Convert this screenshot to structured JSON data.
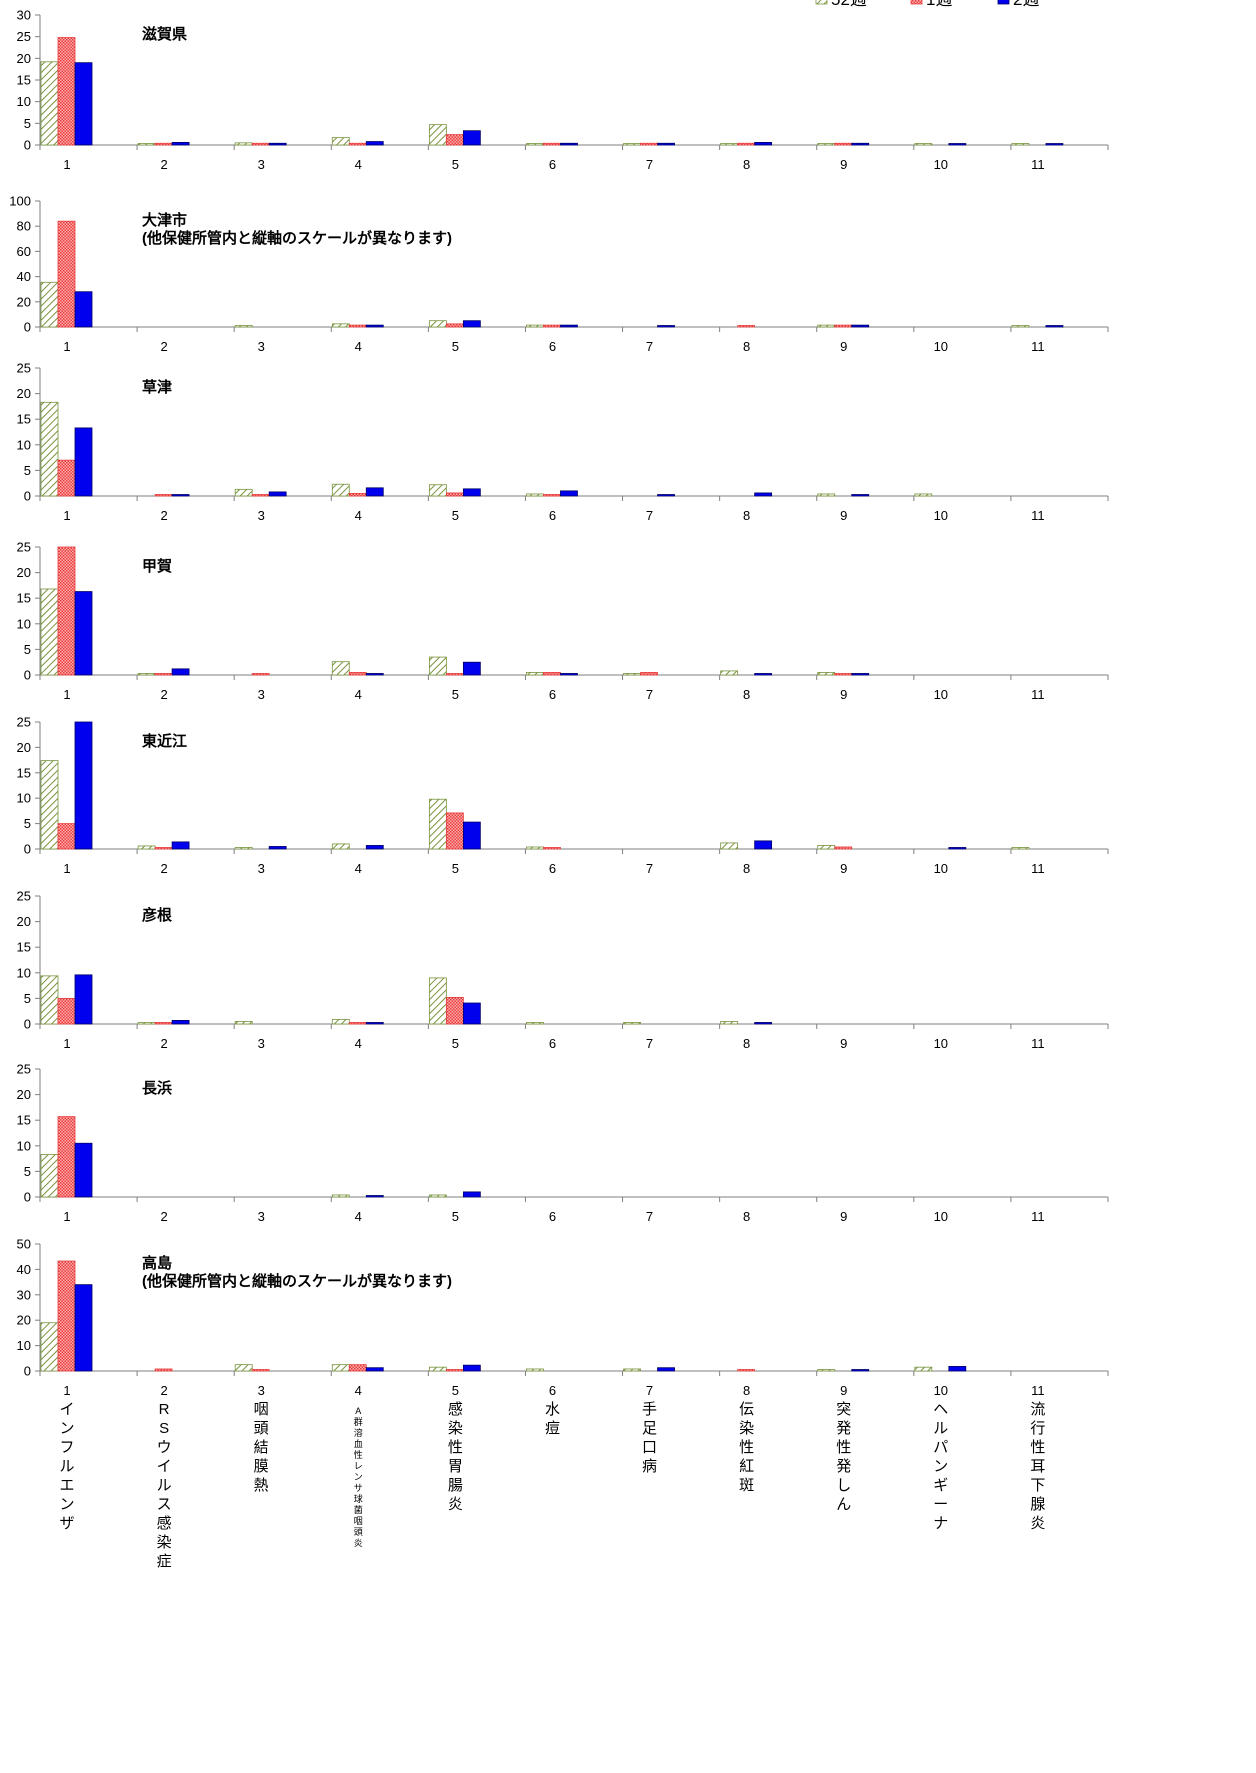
{
  "chart_data": {
    "type": "bar",
    "categories": [
      "1",
      "2",
      "3",
      "4",
      "5",
      "6",
      "7",
      "8",
      "9",
      "10",
      "11"
    ],
    "category_names": [
      "インフルエンザ",
      "RSウイルス感染症",
      "咽頭結膜熱",
      "A群溶血性レンサ球菌咽頭炎",
      "感染性胃腸炎",
      "水痘",
      "手足口病",
      "伝染性紅斑",
      "突発性発しん",
      "ヘルパンギーナ",
      "流行性耳下腺炎"
    ],
    "series_names": [
      "52週",
      "1週",
      "2週"
    ],
    "colors": {
      "s0": "#77933c",
      "s1": "#e83a3a",
      "s2": "#0000ee"
    },
    "legend_position": "top-right",
    "grid": false,
    "panels": [
      {
        "title": "滋賀県",
        "note": "",
        "ylim": [
          0,
          30
        ],
        "yticks": [
          0,
          5,
          10,
          15,
          20,
          25,
          30
        ],
        "series": [
          {
            "name": "52週",
            "values": [
              19.2,
              0.2,
              0.5,
              1.7,
              4.7,
              0.2,
              0.2,
              0.1,
              0.2,
              0.2,
              0.2
            ]
          },
          {
            "name": "1週",
            "values": [
              24.8,
              0.4,
              0.4,
              0.4,
              2.4,
              0.4,
              0.4,
              0.4,
              0.4,
              0,
              0
            ]
          },
          {
            "name": "2週",
            "values": [
              19.0,
              0.6,
              0.4,
              0.8,
              3.3,
              0.4,
              0.4,
              0.6,
              0.4,
              0.3,
              0.3
            ]
          }
        ]
      },
      {
        "title": "大津市",
        "note": "(他保健所管内と縦軸のスケールが異なります)",
        "ylim": [
          0,
          100
        ],
        "yticks": [
          0,
          20,
          40,
          60,
          80,
          100
        ],
        "series": [
          {
            "name": "52週",
            "values": [
              35.5,
              0,
              0.8,
              2.5,
              5.0,
              1.5,
              0,
              0,
              1.5,
              0,
              1.0
            ]
          },
          {
            "name": "1週",
            "values": [
              84.0,
              0,
              0,
              1.5,
              2.5,
              1.5,
              0,
              1.0,
              1.5,
              0,
              0
            ]
          },
          {
            "name": "2週",
            "values": [
              28.0,
              0,
              0,
              1.5,
              5.0,
              1.5,
              1.0,
              0,
              1.5,
              0,
              1.0
            ]
          }
        ]
      },
      {
        "title": "草津",
        "note": "",
        "ylim": [
          0,
          25
        ],
        "yticks": [
          0,
          5,
          10,
          15,
          20,
          25
        ],
        "series": [
          {
            "name": "52週",
            "values": [
              18.3,
              0,
              1.3,
              2.3,
              2.2,
              0.4,
              0,
              0,
              0.4,
              0.4,
              0
            ]
          },
          {
            "name": "1週",
            "values": [
              7.0,
              0.2,
              0.2,
              0.5,
              0.6,
              0.2,
              0,
              0,
              0,
              0,
              0
            ]
          },
          {
            "name": "2週",
            "values": [
              13.3,
              0.2,
              0.8,
              1.6,
              1.4,
              1.0,
              0.2,
              0.6,
              0.2,
              0,
              0
            ]
          }
        ]
      },
      {
        "title": "甲賀",
        "note": "",
        "ylim": [
          0,
          25
        ],
        "yticks": [
          0,
          5,
          10,
          15,
          20,
          25
        ],
        "series": [
          {
            "name": "52週",
            "values": [
              16.8,
              0.3,
              0,
              2.6,
              3.5,
              0.5,
              0.3,
              0.8,
              0.5,
              0,
              0
            ]
          },
          {
            "name": "1週",
            "values": [
              25.0,
              0.3,
              0.3,
              0.5,
              0.2,
              0.5,
              0.5,
              0,
              0.2,
              0,
              0
            ]
          },
          {
            "name": "2週",
            "values": [
              16.3,
              1.2,
              0,
              0.3,
              2.5,
              0.3,
              0,
              0.3,
              0.3,
              0,
              0
            ]
          }
        ]
      },
      {
        "title": "東近江",
        "note": "",
        "ylim": [
          0,
          25
        ],
        "yticks": [
          0,
          5,
          10,
          15,
          20,
          25
        ],
        "series": [
          {
            "name": "52週",
            "values": [
              17.4,
              0.6,
              0.3,
              1.0,
              9.8,
              0.4,
              0,
              1.2,
              0.7,
              0,
              0.3
            ]
          },
          {
            "name": "1週",
            "values": [
              5.0,
              0.2,
              0,
              0,
              7.1,
              0.3,
              0,
              0,
              0.4,
              0,
              0
            ]
          },
          {
            "name": "2週",
            "values": [
              25.0,
              1.4,
              0.5,
              0.7,
              5.3,
              0,
              0,
              1.6,
              0,
              0.3,
              0
            ]
          }
        ]
      },
      {
        "title": "彦根",
        "note": "",
        "ylim": [
          0,
          25
        ],
        "yticks": [
          0,
          5,
          10,
          15,
          20,
          25
        ],
        "series": [
          {
            "name": "52週",
            "values": [
              9.4,
              0.3,
              0.5,
              0.9,
              9.0,
              0.3,
              0.3,
              0.5,
              0,
              0,
              0
            ]
          },
          {
            "name": "1週",
            "values": [
              5.0,
              0.3,
              0,
              0.3,
              5.2,
              0,
              0,
              0,
              0,
              0,
              0
            ]
          },
          {
            "name": "2週",
            "values": [
              9.6,
              0.7,
              0,
              0.3,
              4.1,
              0,
              0,
              0.3,
              0,
              0,
              0
            ]
          }
        ]
      },
      {
        "title": "長浜",
        "note": "",
        "ylim": [
          0,
          25
        ],
        "yticks": [
          0,
          5,
          10,
          15,
          20,
          25
        ],
        "series": [
          {
            "name": "52週",
            "values": [
              8.3,
              0,
              0,
              0.4,
              0.4,
              0,
              0,
              0,
              0,
              0,
              0
            ]
          },
          {
            "name": "1週",
            "values": [
              15.7,
              0,
              0,
              0,
              0,
              0,
              0,
              0,
              0,
              0,
              0
            ]
          },
          {
            "name": "2週",
            "values": [
              10.5,
              0,
              0,
              0.2,
              1.0,
              0,
              0,
              0,
              0,
              0,
              0
            ]
          }
        ]
      },
      {
        "title": "高島",
        "note": "(他保健所管内と縦軸のスケールが異なります)",
        "ylim": [
          0,
          50
        ],
        "yticks": [
          0,
          10,
          20,
          30,
          40,
          50
        ],
        "series": [
          {
            "name": "52週",
            "values": [
              19.0,
              0,
              2.5,
              2.5,
              1.5,
              0.8,
              0.8,
              0,
              0.5,
              1.5,
              0
            ]
          },
          {
            "name": "1週",
            "values": [
              43.3,
              0.8,
              0.5,
              2.5,
              0.3,
              0,
              0,
              0.5,
              0,
              0,
              0
            ]
          },
          {
            "name": "2週",
            "values": [
              34.0,
              0,
              0,
              1.3,
              2.3,
              0,
              1.3,
              0,
              0.5,
              1.8,
              0
            ]
          }
        ]
      }
    ]
  }
}
